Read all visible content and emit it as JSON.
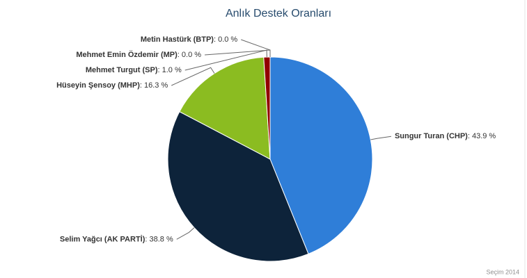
{
  "chart_data": {
    "type": "pie",
    "title": "Anlık Destek Oranları",
    "credits": "Seçim 2014",
    "categories": [
      "Sungur Turan (CHP)",
      "Selim Yağcı (AK PARTİ)",
      "Hüseyin Şensoy (MHP)",
      "Mehmet Turgut (SP)",
      "Metin Hastürk (BTP)",
      "Mehmet Emin Özdemir (MP)"
    ],
    "values": [
      43.9,
      38.8,
      16.3,
      1.0,
      0.0,
      0.0
    ],
    "value_labels": [
      ": 43.9 %",
      ": 38.8 %",
      ": 16.3 %",
      ": 1.0 %",
      ": 0.0 %",
      ": 0.0 %"
    ],
    "colors": [
      "#2f7ed8",
      "#0d233a",
      "#8bbc21",
      "#910000",
      "#1aadce",
      "#492970"
    ]
  }
}
